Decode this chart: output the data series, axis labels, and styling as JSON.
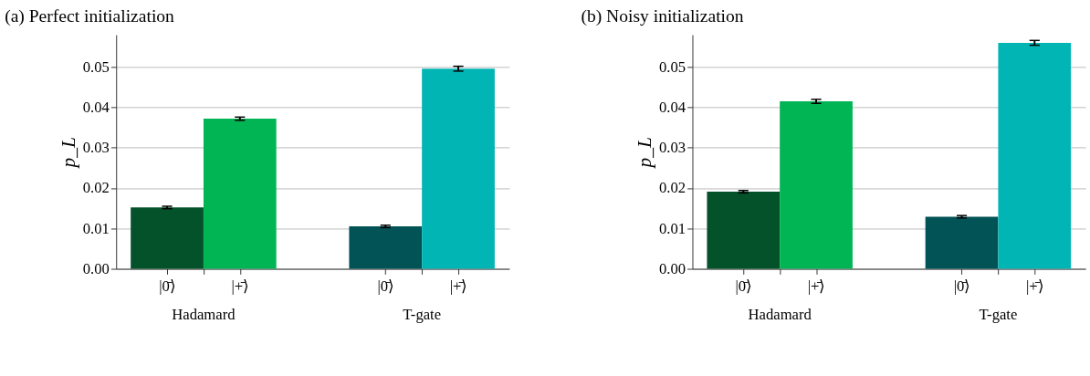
{
  "chart_data": [
    {
      "type": "bar",
      "title": "(a) Perfect initialization",
      "ylabel": "p_L",
      "categories": [
        "|0̄⟩",
        "|+̄⟩",
        "|0̄⟩",
        "|+̄⟩"
      ],
      "values": [
        0.0152,
        0.0372,
        0.0105,
        0.0496
      ],
      "errors": [
        0.0003,
        0.0004,
        0.0003,
        0.0006
      ],
      "colors": [
        "#03522a",
        "#02b554",
        "#025356",
        "#02b5b5"
      ],
      "ylim": [
        0,
        0.058
      ],
      "yticks": [
        {
          "value": 0,
          "label": "0.00"
        },
        0.01,
        0.02,
        0.03,
        0.04,
        0.05
      ],
      "grid": "y",
      "annotations": [
        "Hadamard",
        "T-gate"
      ]
    },
    {
      "type": "bar",
      "title": "(b) Noisy initialization",
      "ylabel": "p_L",
      "categories": [
        "|0̄⟩",
        "|+̄⟩",
        "|0̄⟩",
        "|+̄⟩"
      ],
      "values": [
        0.0191,
        0.0415,
        0.0129,
        0.056
      ],
      "errors": [
        0.0003,
        0.0005,
        0.0003,
        0.0006
      ],
      "colors": [
        "#03522a",
        "#02b554",
        "#025356",
        "#02b5b5"
      ],
      "ylim": [
        0,
        0.058
      ],
      "yticks": [
        {
          "value": 0,
          "label": "0.00"
        },
        0.01,
        0.02,
        0.03,
        0.04,
        0.05
      ],
      "grid": "y",
      "annotations": [
        "Hadamard",
        "T-gate"
      ]
    }
  ]
}
